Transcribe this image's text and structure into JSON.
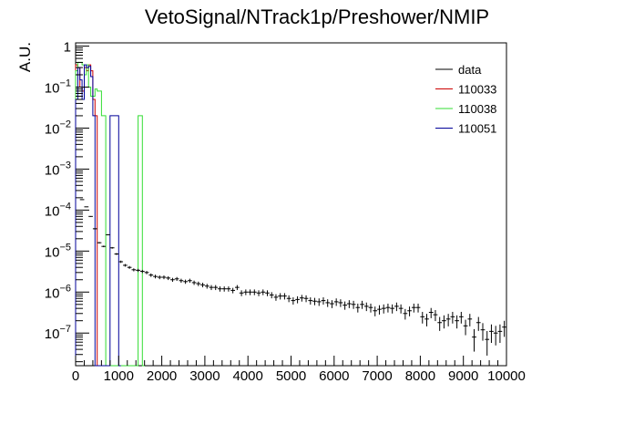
{
  "chart_data": {
    "type": "histogram",
    "title": "VetoSignal/NTrack1p/Preshower/NMIP",
    "ylabel": "A.U.",
    "xlabel": "",
    "xlim": [
      0,
      10000
    ],
    "ylim": [
      1.6e-08,
      1.2
    ],
    "yscale": "log",
    "x_ticks": [
      0,
      1000,
      2000,
      3000,
      4000,
      5000,
      6000,
      7000,
      8000,
      9000,
      10000
    ],
    "x_tick_labels": [
      "0",
      "1000",
      "2000",
      "3000",
      "4000",
      "5000",
      "6000",
      "7000",
      "8000",
      "9000",
      "10000"
    ],
    "y_tick_labels": [
      {
        "value": 1,
        "base": "1",
        "exp": ""
      },
      {
        "value": 0.1,
        "base": "10",
        "exp": "−1"
      },
      {
        "value": 0.01,
        "base": "10",
        "exp": "−2"
      },
      {
        "value": 0.001,
        "base": "10",
        "exp": "−3"
      },
      {
        "value": 0.0001,
        "base": "10",
        "exp": "−4"
      },
      {
        "value": 1e-05,
        "base": "10",
        "exp": "−5"
      },
      {
        "value": 1e-06,
        "base": "10",
        "exp": "−6"
      },
      {
        "value": 1e-07,
        "base": "10",
        "exp": "−7"
      }
    ],
    "legend": {
      "placement": "top-right",
      "entries": [
        {
          "name": "data",
          "color": "#000000"
        },
        {
          "name": "110033",
          "color": "#cc0000"
        },
        {
          "name": "110038",
          "color": "#33dd33"
        },
        {
          "name": "110051",
          "color": "#000099"
        }
      ]
    },
    "series": [
      {
        "name": "data",
        "style": "markers",
        "color": "#000000",
        "bin_width": 100,
        "x": [
          50,
          150,
          250,
          350,
          450,
          550,
          650,
          750,
          850,
          950,
          1050,
          1150,
          1250,
          1350,
          1450,
          1550,
          1650,
          1750,
          1850,
          1950,
          2050,
          2150,
          2250,
          2350,
          2450,
          2550,
          2650,
          2750,
          2850,
          2950,
          3050,
          3150,
          3250,
          3350,
          3450,
          3550,
          3650,
          3750,
          3850,
          3950,
          4050,
          4150,
          4250,
          4350,
          4450,
          4550,
          4650,
          4750,
          4850,
          4950,
          5050,
          5150,
          5250,
          5350,
          5450,
          5550,
          5650,
          5750,
          5850,
          5950,
          6050,
          6150,
          6250,
          6350,
          6450,
          6550,
          6650,
          6750,
          6850,
          6950,
          7050,
          7150,
          7250,
          7350,
          7450,
          7550,
          7650,
          7750,
          7850,
          7950,
          8050,
          8150,
          8250,
          8350,
          8450,
          8550,
          8650,
          8750,
          8850,
          8950,
          9050,
          9150,
          9250,
          9350,
          9450,
          9550,
          9650,
          9750,
          9850,
          9950
        ],
        "values": [
          0.2,
          0.00018,
          0.00012,
          7e-05,
          3.5e-05,
          1.6e-05,
          1.3e-05,
          2.5e-05,
          1.2e-05,
          8.5e-06,
          5.5e-06,
          4.5e-06,
          4e-06,
          3.5e-06,
          3.4e-06,
          3.2e-06,
          3e-06,
          2.6e-06,
          2.4e-06,
          2.3e-06,
          2.3e-06,
          2.2e-06,
          2e-06,
          2.1e-06,
          1.9e-06,
          1.8e-06,
          1.9e-06,
          1.7e-06,
          1.6e-06,
          1.5e-06,
          1.4e-06,
          1.3e-06,
          1.3e-06,
          1.2e-06,
          1.2e-06,
          1.2e-06,
          1.1e-06,
          1.3e-06,
          9.5e-07,
          1e-06,
          1e-06,
          1e-06,
          9.5e-07,
          1e-06,
          9.5e-07,
          8.5e-07,
          7.5e-07,
          8e-07,
          8e-07,
          7e-07,
          6.2e-07,
          6.6e-07,
          7.2e-07,
          7e-07,
          6.2e-07,
          6e-07,
          5.8e-07,
          6.2e-07,
          5.5e-07,
          5.2e-07,
          5.8e-07,
          5.5e-07,
          4.8e-07,
          5.2e-07,
          5e-07,
          4.2e-07,
          5e-07,
          4.5e-07,
          4.2e-07,
          3.5e-07,
          3.8e-07,
          4e-07,
          4.2e-07,
          4e-07,
          4.5e-07,
          4e-07,
          3e-07,
          3.5e-07,
          4.2e-07,
          4.2e-07,
          2.5e-07,
          2.2e-07,
          3.2e-07,
          2.8e-07,
          1.8e-07,
          2e-07,
          2.2e-07,
          2.5e-07,
          2e-07,
          2.5e-07,
          1.5e-07,
          2.2e-07,
          8e-08,
          1.8e-07,
          1.2e-07,
          7e-08,
          1.1e-07,
          1e-07,
          1.1e-07,
          1.4e-07
        ]
      },
      {
        "name": "110033",
        "style": "step",
        "color": "#cc0000",
        "bin_edges": [
          0,
          50,
          100,
          150,
          200,
          250,
          300,
          350,
          400,
          450,
          500
        ],
        "values": [
          0.35,
          0.3,
          0.1,
          0.08,
          0.3,
          0.25,
          0.35,
          0.25,
          0.05,
          0.02
        ]
      },
      {
        "name": "110038",
        "style": "step",
        "color": "#33dd33",
        "bin_edges": [
          0,
          50,
          100,
          150,
          200,
          250,
          300,
          350,
          400,
          450,
          500,
          550,
          600,
          650,
          700,
          750,
          800,
          850,
          900,
          950,
          1000,
          1050,
          1100,
          1150,
          1200,
          1250,
          1300,
          1350,
          1400,
          1450,
          1500,
          1550,
          1600
        ],
        "values": [
          0.25,
          0.4,
          0.4,
          0.35,
          0.2,
          0.35,
          0.1,
          0.06,
          0.06,
          0.09,
          0.08,
          0.08,
          0.02,
          0.02,
          0,
          0,
          0,
          0,
          0,
          0,
          0,
          0,
          0,
          0,
          0,
          0,
          0,
          0,
          0,
          0.02,
          0.02,
          0
        ]
      },
      {
        "name": "110051",
        "style": "step",
        "color": "#000099",
        "bin_edges": [
          0,
          50,
          100,
          150,
          200,
          250,
          300,
          350,
          400,
          450,
          500,
          550,
          600,
          650,
          700,
          750,
          800,
          850,
          900,
          950,
          1000,
          1050
        ],
        "values": [
          0.05,
          0.3,
          0.15,
          0.05,
          0.35,
          0.3,
          0.32,
          0.18,
          0.02,
          0,
          0,
          0,
          0,
          0,
          0,
          0,
          0.02,
          0.02,
          0.02,
          0.02,
          0
        ]
      }
    ]
  }
}
